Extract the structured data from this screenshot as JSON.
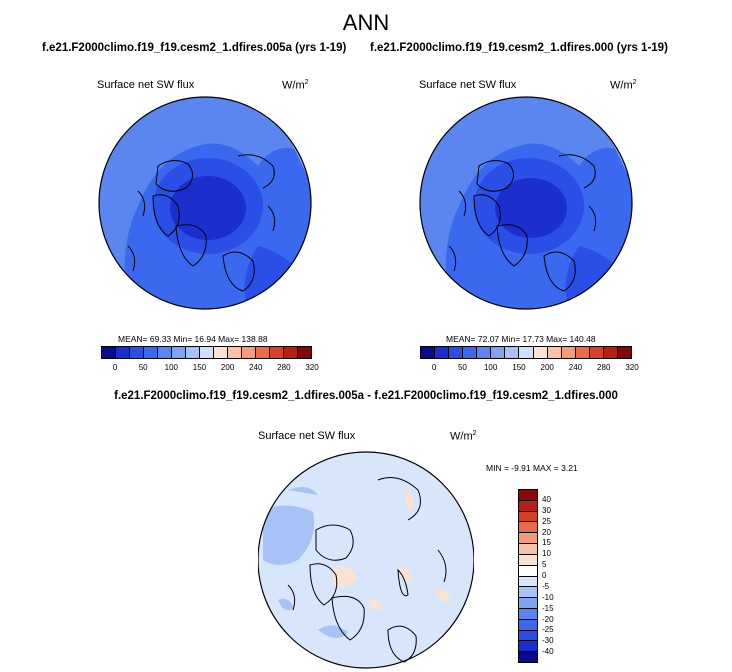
{
  "main_title": "ANN",
  "panels": [
    {
      "title": "f.e21.F2000climo.f19_f19.cesm2_1.dfires.005a (yrs 1-19)",
      "variable": "Surface net SW flux",
      "units": "W/m",
      "units_sup": "2",
      "stats": "MEAN=  69.33  Min=  16.94  Max= 138.88"
    },
    {
      "title": "f.e21.F2000climo.f19_f19.cesm2_1.dfires.000 (yrs 1-19)",
      "variable": "Surface net SW flux",
      "units": "W/m",
      "units_sup": "2",
      "stats": "MEAN=  72.07  Min=  17.73  Max= 140.48"
    }
  ],
  "diff_panel": {
    "title": "f.e21.F2000climo.f19_f19.cesm2_1.dfires.005a - f.e21.F2000climo.f19_f19.cesm2_1.dfires.000",
    "variable": "Surface net SW flux",
    "units": "W/m",
    "units_sup": "2",
    "stats": "MIN =  -9.91 MAX =   3.21"
  },
  "abs_colorbar": {
    "tick_labels": [
      "0",
      "50",
      "100",
      "150",
      "200",
      "240",
      "280",
      "320"
    ],
    "colors": [
      "#0a0a8c",
      "#1b2fcf",
      "#2a4ee6",
      "#3a68ee",
      "#5b86f0",
      "#7ea3f3",
      "#a6c2f6",
      "#cfe0fb",
      "#fbe3d3",
      "#f8c2a6",
      "#f29c7b",
      "#e86c4b",
      "#d8402b",
      "#b51f16",
      "#7e0a0a"
    ]
  },
  "diff_colorbar": {
    "tick_labels": [
      "40",
      "30",
      "25",
      "20",
      "15",
      "10",
      "5",
      "0",
      "-5",
      "-10",
      "-15",
      "-20",
      "-25",
      "-30",
      "-40"
    ],
    "colors": [
      "#8a0a0a",
      "#b51f16",
      "#d8402b",
      "#e86c4b",
      "#f29c7b",
      "#f8c2a6",
      "#fbe3d3",
      "#ffffff",
      "#d8e6fb",
      "#a6c2f6",
      "#7ea3f3",
      "#5b86f0",
      "#3a68ee",
      "#2a4ee6",
      "#1b2fcf",
      "#0a0a8c"
    ]
  }
}
